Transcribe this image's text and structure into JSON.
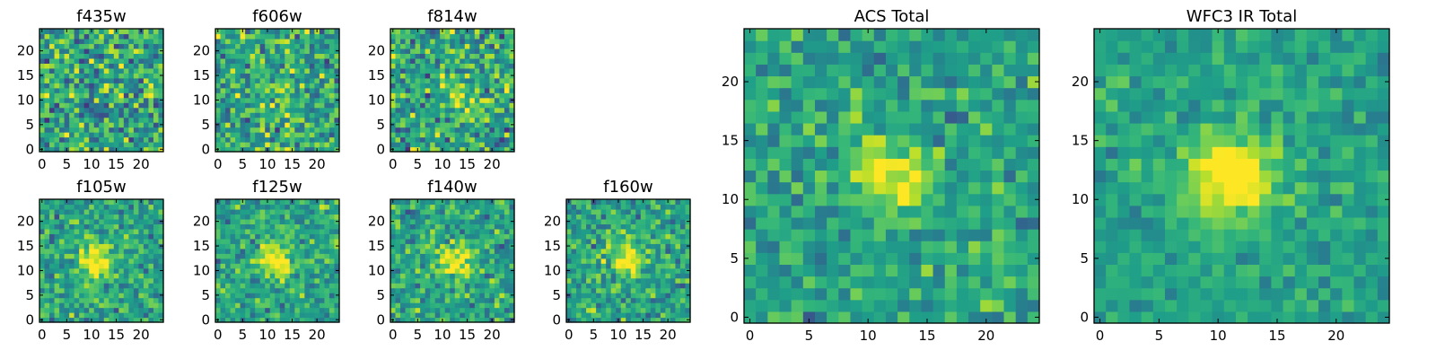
{
  "chart_data": [
    {
      "type": "heatmap",
      "name": "panel-f435w",
      "title": "f435w",
      "grid": [
        25,
        25
      ],
      "xlim": [
        0,
        24
      ],
      "ylim": [
        0,
        24
      ],
      "xticks": [
        "0",
        "5",
        "10",
        "15",
        "20"
      ],
      "yticks": [
        "0",
        "5",
        "10",
        "15",
        "20"
      ],
      "colormap": "viridis",
      "peak": [
        12,
        12
      ],
      "peak_strength": 0.05,
      "noise": 1.0
    },
    {
      "type": "heatmap",
      "name": "panel-f606w",
      "title": "f606w",
      "grid": [
        25,
        25
      ],
      "xlim": [
        0,
        24
      ],
      "ylim": [
        0,
        24
      ],
      "xticks": [
        "0",
        "5",
        "10",
        "15",
        "20"
      ],
      "yticks": [
        "0",
        "5",
        "10",
        "15",
        "20"
      ],
      "colormap": "viridis",
      "peak": [
        11,
        11
      ],
      "peak_strength": 0.22,
      "noise": 0.95
    },
    {
      "type": "heatmap",
      "name": "panel-f814w",
      "title": "f814w",
      "grid": [
        25,
        25
      ],
      "xlim": [
        0,
        24
      ],
      "ylim": [
        0,
        24
      ],
      "xticks": [
        "0",
        "5",
        "10",
        "15",
        "20"
      ],
      "yticks": [
        "0",
        "5",
        "10",
        "15",
        "20"
      ],
      "colormap": "viridis",
      "peak": [
        13,
        12
      ],
      "peak_strength": 0.25,
      "noise": 0.95
    },
    {
      "type": "heatmap",
      "name": "panel-f105w",
      "title": "f105w",
      "grid": [
        25,
        25
      ],
      "xlim": [
        0,
        24
      ],
      "ylim": [
        0,
        24
      ],
      "xticks": [
        "0",
        "5",
        "10",
        "15",
        "20"
      ],
      "yticks": [
        "0",
        "5",
        "10",
        "15",
        "20"
      ],
      "colormap": "viridis",
      "peak": [
        11,
        12
      ],
      "peak_strength": 0.5,
      "noise": 0.7
    },
    {
      "type": "heatmap",
      "name": "panel-f125w",
      "title": "f125w",
      "grid": [
        25,
        25
      ],
      "xlim": [
        0,
        24
      ],
      "ylim": [
        0,
        24
      ],
      "xticks": [
        "0",
        "5",
        "10",
        "15",
        "20"
      ],
      "yticks": [
        "0",
        "5",
        "10",
        "15",
        "20"
      ],
      "colormap": "viridis",
      "peak": [
        12,
        12
      ],
      "peak_strength": 0.5,
      "noise": 0.7
    },
    {
      "type": "heatmap",
      "name": "panel-f140w",
      "title": "f140w",
      "grid": [
        25,
        25
      ],
      "xlim": [
        0,
        24
      ],
      "ylim": [
        0,
        24
      ],
      "xticks": [
        "0",
        "5",
        "10",
        "15",
        "20"
      ],
      "yticks": [
        "0",
        "5",
        "10",
        "15",
        "20"
      ],
      "colormap": "viridis",
      "peak": [
        12,
        12
      ],
      "peak_strength": 0.5,
      "noise": 0.7
    },
    {
      "type": "heatmap",
      "name": "panel-f160w",
      "title": "f160w",
      "grid": [
        25,
        25
      ],
      "xlim": [
        0,
        24
      ],
      "ylim": [
        0,
        24
      ],
      "xticks": [
        "0",
        "5",
        "10",
        "15",
        "20"
      ],
      "yticks": [
        "0",
        "5",
        "10",
        "15",
        "20"
      ],
      "colormap": "viridis",
      "peak": [
        12,
        12
      ],
      "peak_strength": 0.5,
      "noise": 0.7
    },
    {
      "type": "heatmap",
      "name": "panel-acs-total",
      "title": "ACS Total",
      "grid": [
        25,
        25
      ],
      "xlim": [
        0,
        24
      ],
      "ylim": [
        0,
        24
      ],
      "xticks": [
        "0",
        "5",
        "10",
        "15",
        "20"
      ],
      "yticks": [
        "0",
        "5",
        "10",
        "15",
        "20"
      ],
      "colormap": "viridis",
      "peak": [
        12,
        12
      ],
      "peak_strength": 0.35,
      "noise": 0.6
    },
    {
      "type": "heatmap",
      "name": "panel-wfc3-ir-total",
      "title": "WFC3 IR Total",
      "grid": [
        25,
        25
      ],
      "xlim": [
        0,
        24
      ],
      "ylim": [
        0,
        24
      ],
      "xticks": [
        "0",
        "5",
        "10",
        "15",
        "20"
      ],
      "yticks": [
        "0",
        "5",
        "10",
        "15",
        "20"
      ],
      "colormap": "viridis",
      "peak": [
        11,
        12
      ],
      "peak_strength": 0.6,
      "noise": 0.45
    }
  ]
}
